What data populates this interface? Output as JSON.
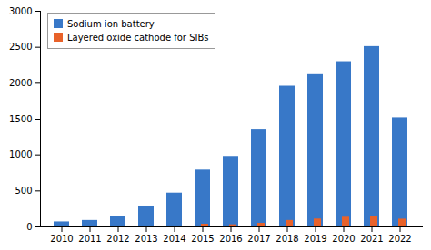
{
  "chart_data": {
    "type": "bar",
    "categories": [
      "2010",
      "2011",
      "2012",
      "2013",
      "2014",
      "2015",
      "2016",
      "2017",
      "2018",
      "2019",
      "2020",
      "2021",
      "2022"
    ],
    "series": [
      {
        "name": "Sodium ion battery",
        "color": "#3878C8",
        "values": [
          70,
          90,
          140,
          290,
          470,
          790,
          980,
          1360,
          1960,
          2120,
          2300,
          2510,
          1520
        ]
      },
      {
        "name": "Layered oxide cathode for SIBs",
        "color": "#E8622A",
        "values": [
          5,
          5,
          8,
          12,
          12,
          38,
          30,
          50,
          90,
          110,
          135,
          148,
          108
        ]
      }
    ],
    "ylim": [
      0,
      3000
    ],
    "yticks": [
      0,
      500,
      1000,
      1500,
      2000,
      2500,
      3000
    ],
    "grid": false,
    "legend": "upper left"
  }
}
